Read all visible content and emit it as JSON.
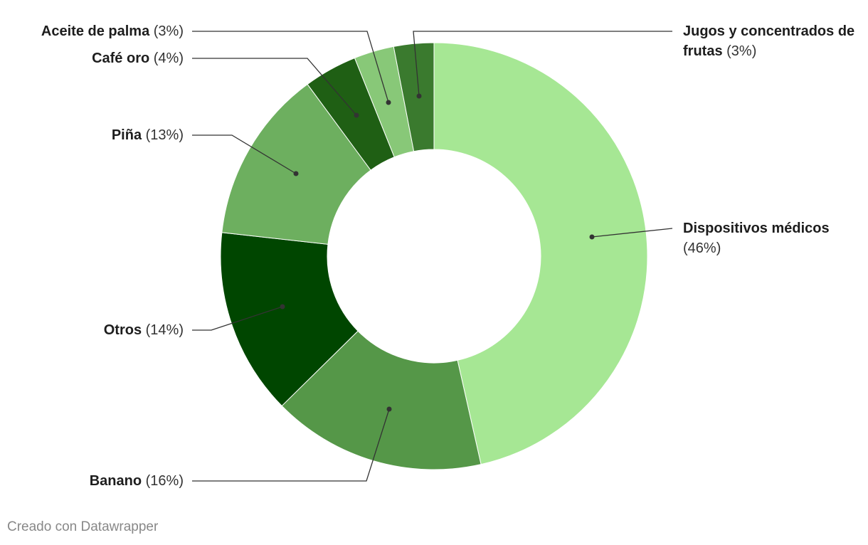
{
  "chart_data": {
    "type": "donut",
    "categories": [
      "Dispositivos médicos",
      "Banano",
      "Otros",
      "Piña",
      "Café oro",
      "Aceite de palma",
      "Jugos y concentrados de frutas"
    ],
    "values": [
      46,
      16,
      14,
      13,
      4,
      3,
      3
    ],
    "value_labels": [
      "(46%)",
      "(16%)",
      "(14%)",
      "(13%)",
      "(4%)",
      "(3%)",
      "(3%)"
    ],
    "colors": [
      "#a6e794",
      "#559748",
      "#004600",
      "#6daf5f",
      "#1f5f14",
      "#88c878",
      "#3a7a2e"
    ]
  },
  "footer": "Creado con Datawrapper"
}
